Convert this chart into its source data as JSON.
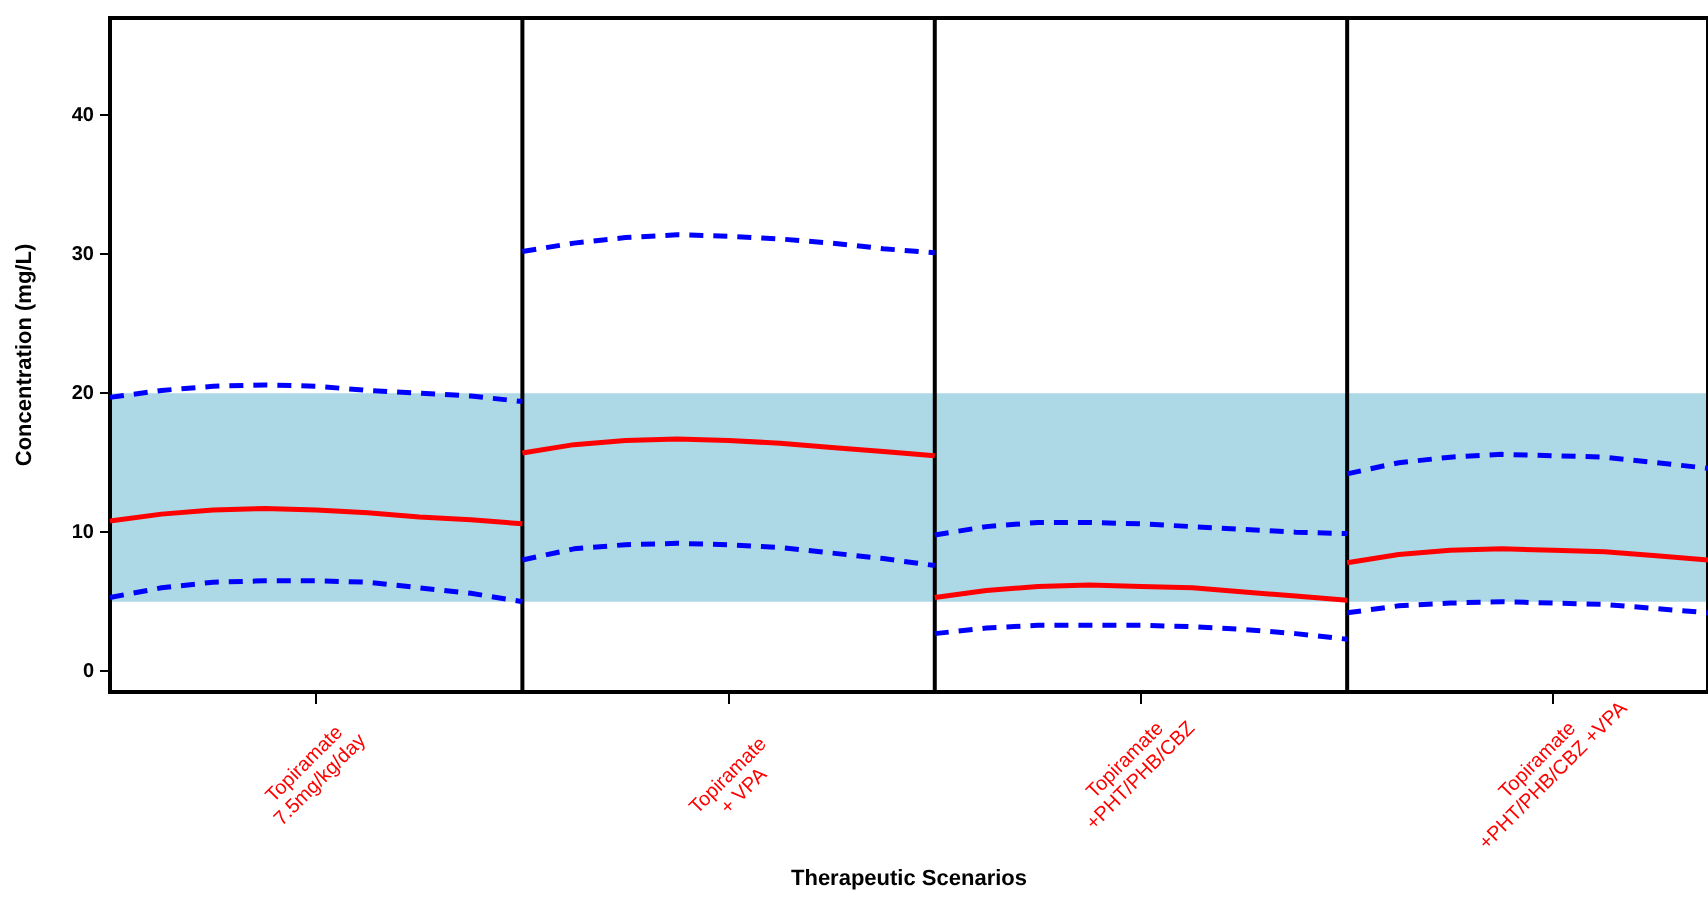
{
  "chart_data": {
    "type": "line",
    "ylabel": "Concentration (mg/L)",
    "xlabel": "Therapeutic Scenarios",
    "categories": [
      null,
      null,
      null,
      null,
      "Topiramate\n7.5mg/kg/day",
      null,
      null,
      null,
      null,
      null,
      null,
      null,
      "Topiramate\n+ VPA",
      null,
      null,
      null,
      null,
      null,
      null,
      null,
      "Topiramate\n+PHT/PHB/CBZ",
      null,
      null,
      null,
      null,
      null,
      null,
      null,
      "Topiramate\n+PHT/PHB/CBZ +VPA",
      null,
      null,
      null
    ],
    "series": [
      {
        "color": "#ff0000",
        "line_style": "solid",
        "values": [
          10.8,
          11.3,
          11.6,
          11.7,
          11.6,
          11.4,
          11.1,
          10.9,
          10.6,
          null,
          null,
          null,
          null,
          null,
          null,
          null,
          null,
          null,
          null,
          null,
          null,
          null,
          null,
          null,
          null,
          null,
          null,
          null,
          null,
          null,
          null,
          null
        ]
      },
      {
        "color": "#0000ff",
        "line_style": "dashed",
        "values": [
          19.7,
          20.2,
          20.5,
          20.6,
          20.5,
          20.2,
          20.0,
          19.8,
          19.4,
          null,
          null,
          null,
          null,
          null,
          null,
          null,
          null,
          null,
          null,
          null,
          null,
          null,
          null,
          null,
          null,
          null,
          null,
          null,
          null,
          null,
          null,
          null
        ]
      },
      {
        "color": "#0000ff",
        "line_style": "dashed",
        "values": [
          5.3,
          6.0,
          6.4,
          6.5,
          6.5,
          6.4,
          6.0,
          5.6,
          5.0,
          null,
          null,
          null,
          null,
          null,
          null,
          null,
          null,
          null,
          null,
          null,
          null,
          null,
          null,
          null,
          null,
          null,
          null,
          null,
          null,
          null,
          null,
          null
        ]
      },
      {
        "color": "#ff0000",
        "line_style": "solid",
        "values": [
          null,
          null,
          null,
          null,
          null,
          null,
          null,
          null,
          15.7,
          16.3,
          16.6,
          16.7,
          16.6,
          16.4,
          16.1,
          15.8,
          15.5,
          null,
          null,
          null,
          null,
          null,
          null,
          null,
          null,
          null,
          null,
          null,
          null,
          null,
          null,
          null
        ]
      },
      {
        "color": "#0000ff",
        "line_style": "dashed",
        "values": [
          null,
          null,
          null,
          null,
          null,
          null,
          null,
          null,
          30.2,
          30.8,
          31.2,
          31.4,
          31.3,
          31.1,
          30.8,
          30.4,
          30.1,
          null,
          null,
          null,
          null,
          null,
          null,
          null,
          null,
          null,
          null,
          null,
          null,
          null,
          null,
          null
        ]
      },
      {
        "color": "#0000ff",
        "line_style": "dashed",
        "values": [
          null,
          null,
          null,
          null,
          null,
          null,
          null,
          null,
          8.0,
          8.8,
          9.1,
          9.2,
          9.1,
          8.9,
          8.5,
          8.1,
          7.6,
          null,
          null,
          null,
          null,
          null,
          null,
          null,
          null,
          null,
          null,
          null,
          null,
          null,
          null,
          null
        ]
      },
      {
        "color": "#ff0000",
        "line_style": "solid",
        "values": [
          null,
          null,
          null,
          null,
          null,
          null,
          null,
          null,
          null,
          null,
          null,
          null,
          null,
          null,
          null,
          null,
          5.3,
          5.8,
          6.1,
          6.2,
          6.1,
          6.0,
          5.7,
          5.4,
          5.1,
          null,
          null,
          null,
          null,
          null,
          null,
          null
        ]
      },
      {
        "color": "#0000ff",
        "line_style": "dashed",
        "values": [
          null,
          null,
          null,
          null,
          null,
          null,
          null,
          null,
          null,
          null,
          null,
          null,
          null,
          null,
          null,
          null,
          9.8,
          10.4,
          10.7,
          10.7,
          10.6,
          10.4,
          10.2,
          10.0,
          9.9,
          null,
          null,
          null,
          null,
          null,
          null,
          null
        ]
      },
      {
        "color": "#0000ff",
        "line_style": "dashed",
        "values": [
          null,
          null,
          null,
          null,
          null,
          null,
          null,
          null,
          null,
          null,
          null,
          null,
          null,
          null,
          null,
          null,
          2.7,
          3.1,
          3.3,
          3.3,
          3.3,
          3.2,
          3.0,
          2.7,
          2.3,
          null,
          null,
          null,
          null,
          null,
          null,
          null
        ]
      },
      {
        "color": "#ff0000",
        "line_style": "solid",
        "values": [
          null,
          null,
          null,
          null,
          null,
          null,
          null,
          null,
          null,
          null,
          null,
          null,
          null,
          null,
          null,
          null,
          null,
          null,
          null,
          null,
          null,
          null,
          null,
          null,
          7.8,
          8.4,
          8.7,
          8.8,
          8.7,
          8.6,
          8.3,
          8.0
        ]
      },
      {
        "color": "#0000ff",
        "line_style": "dashed",
        "values": [
          null,
          null,
          null,
          null,
          null,
          null,
          null,
          null,
          null,
          null,
          null,
          null,
          null,
          null,
          null,
          null,
          null,
          null,
          null,
          null,
          null,
          null,
          null,
          null,
          14.2,
          15.0,
          15.4,
          15.6,
          15.5,
          15.4,
          15.0,
          14.6
        ]
      },
      {
        "color": "#0000ff",
        "line_style": "dashed",
        "values": [
          null,
          null,
          null,
          null,
          null,
          null,
          null,
          null,
          null,
          null,
          null,
          null,
          null,
          null,
          null,
          null,
          null,
          null,
          null,
          null,
          null,
          null,
          null,
          null,
          4.2,
          4.7,
          4.9,
          5.0,
          4.9,
          4.8,
          4.5,
          4.2
        ]
      }
    ],
    "ylim": [
      -1.5,
      47
    ],
    "yticks": [
      0,
      10,
      20,
      30,
      40
    ],
    "bands": [
      {
        "axis": "y",
        "from": 5,
        "to": 20,
        "color": "#add8e6"
      }
    ],
    "grid": "x",
    "legend": false,
    "marker": "none"
  }
}
